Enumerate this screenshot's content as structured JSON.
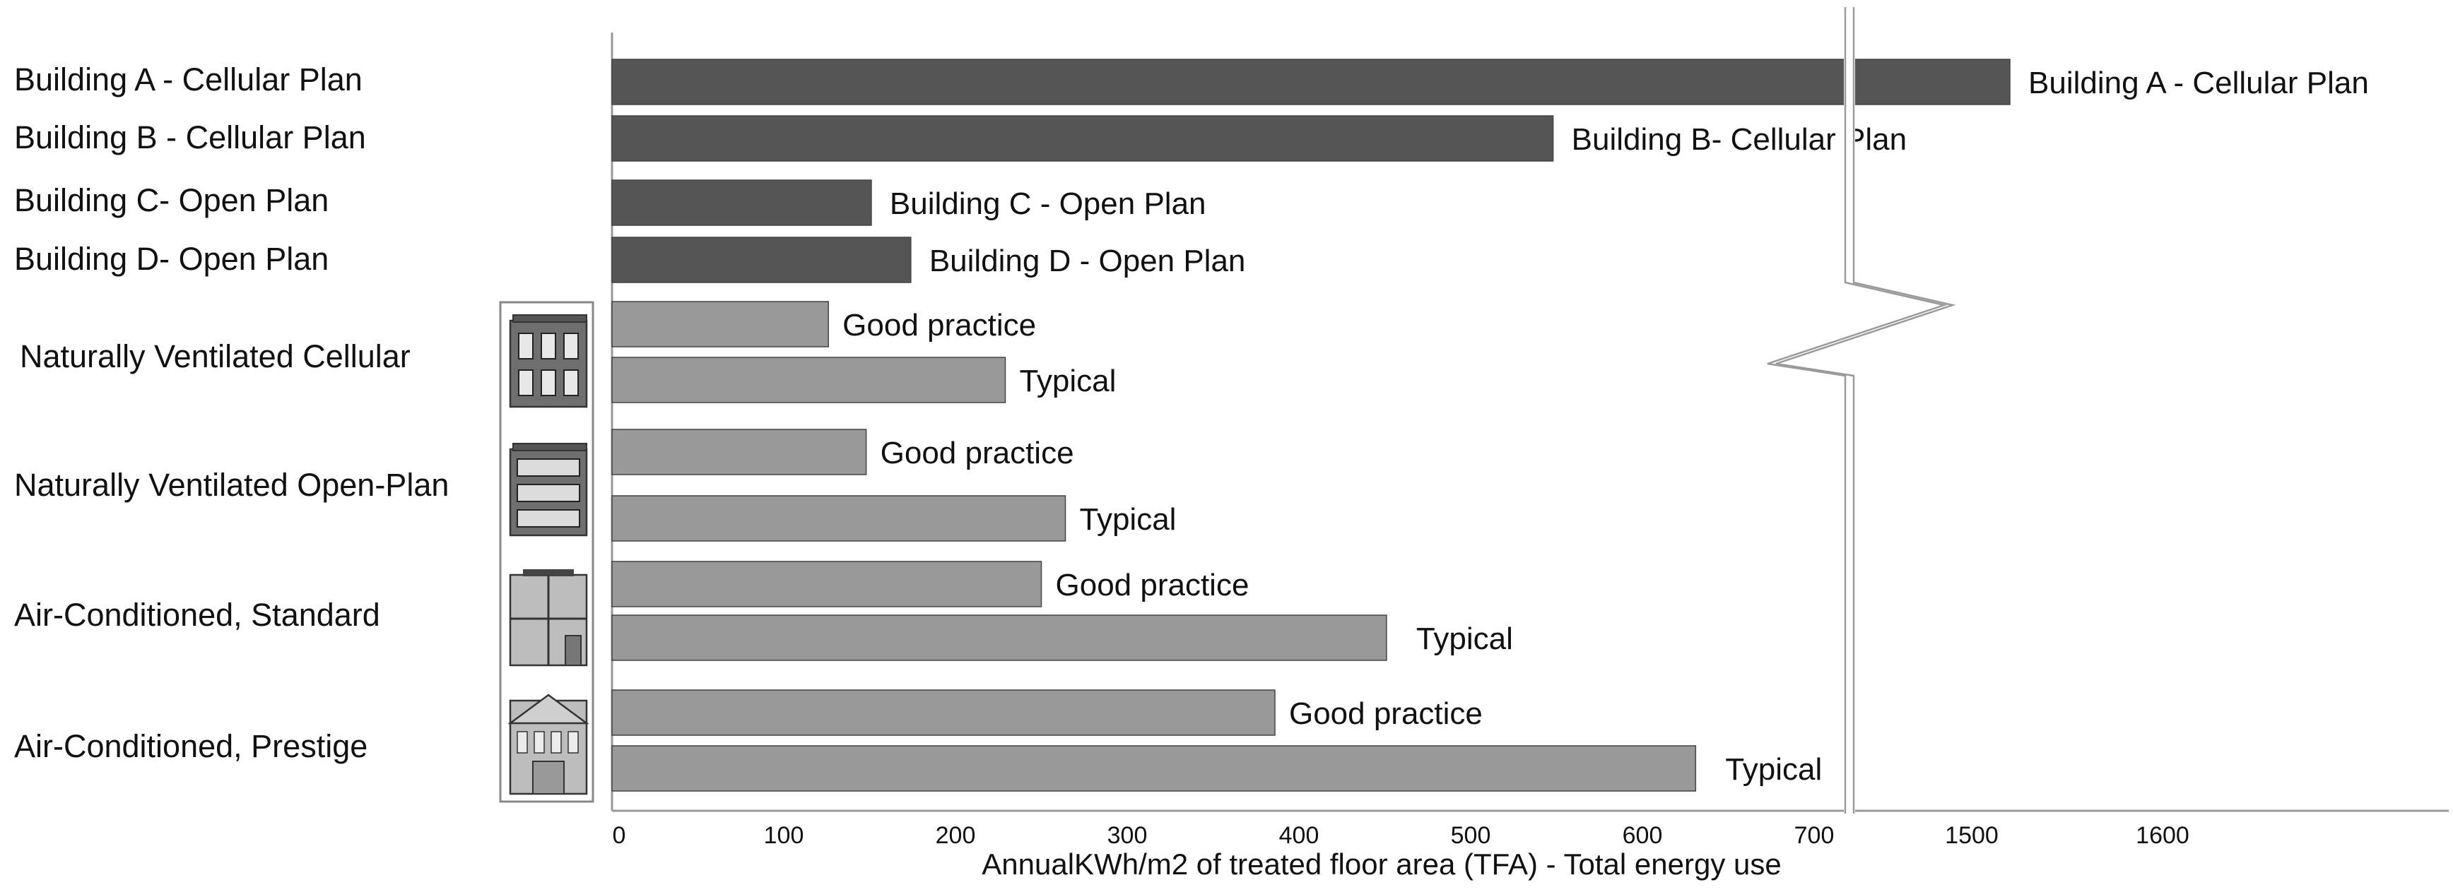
{
  "colors": {
    "building_bar": "#555555",
    "benchmark_bar": "#999999",
    "bar_stroke": "#444444",
    "axis": "#999999",
    "icon_frame": "#888888"
  },
  "chart_data": {
    "type": "bar",
    "orientation": "horizontal",
    "xlabel": "AnnualKWh/m2 of treated floor area (TFA) - Total energy use",
    "ylabel": "",
    "title": "",
    "xlim": [
      0,
      1600
    ],
    "axis_break": {
      "after": 700,
      "resumes_at": 1400
    },
    "xticks": [
      {
        "value": 0,
        "label": "0"
      },
      {
        "value": 100,
        "label": "100"
      },
      {
        "value": 200,
        "label": "200"
      },
      {
        "value": 300,
        "label": "300"
      },
      {
        "value": 400,
        "label": "400"
      },
      {
        "value": 500,
        "label": "500"
      },
      {
        "value": 600,
        "label": "600"
      },
      {
        "value": 700,
        "label": "700"
      },
      {
        "value": 1500,
        "label": "1500"
      },
      {
        "value": 1600,
        "label": "1600"
      }
    ],
    "grid": false,
    "groups": [
      {
        "label": "Building A - Cellular Plan",
        "icon": "",
        "bars": [
          {
            "label": "Building A - Cellular Plan",
            "value": 1520,
            "kind": "building"
          }
        ]
      },
      {
        "label": "Building B - Cellular Plan",
        "icon": "",
        "bars": [
          {
            "label": "Building B- Cellular Plan",
            "value": 548,
            "kind": "building"
          }
        ]
      },
      {
        "label": "Building C- Open Plan",
        "icon": "",
        "bars": [
          {
            "label": "Building C - Open Plan",
            "value": 151,
            "kind": "building"
          }
        ]
      },
      {
        "label": "Building D- Open Plan",
        "icon": "",
        "bars": [
          {
            "label": "Building D - Open Plan",
            "value": 174,
            "kind": "building"
          }
        ]
      },
      {
        "label": "Naturally Ventilated Cellular",
        "icon": "cellular-office-building-icon",
        "bars": [
          {
            "label": "Good practice",
            "value": 126,
            "kind": "benchmark"
          },
          {
            "label": "Typical",
            "value": 229,
            "kind": "benchmark"
          }
        ]
      },
      {
        "label": "Naturally Ventilated Open-Plan",
        "icon": "open-plan-office-building-icon",
        "bars": [
          {
            "label": "Good practice",
            "value": 148,
            "kind": "benchmark"
          },
          {
            "label": "Typical",
            "value": 264,
            "kind": "benchmark"
          }
        ]
      },
      {
        "label": "Air-Conditioned, Standard",
        "icon": "standard-office-building-icon",
        "bars": [
          {
            "label": "Good practice",
            "value": 250,
            "kind": "benchmark"
          },
          {
            "label": "Typical",
            "value": 451,
            "kind": "benchmark"
          }
        ]
      },
      {
        "label": "Air-Conditioned, Prestige",
        "icon": "prestige-office-building-icon",
        "bars": [
          {
            "label": "Good practice",
            "value": 386,
            "kind": "benchmark"
          },
          {
            "label": "Typical",
            "value": 631,
            "kind": "benchmark"
          }
        ]
      }
    ]
  }
}
